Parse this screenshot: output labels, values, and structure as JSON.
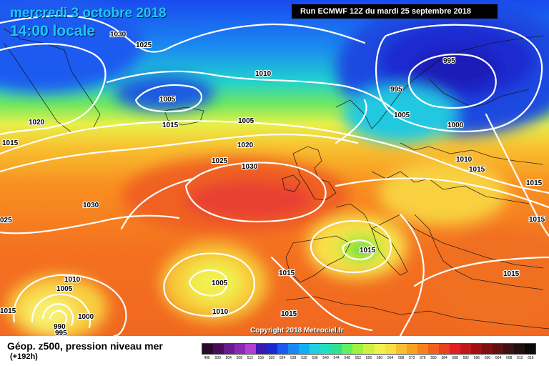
{
  "header": {
    "date_line": "mercredi 3 octobre 2018",
    "time_line": "14:00 locale",
    "run_info": "Run ECMWF 12Z du mardi 25 septembre 2018"
  },
  "copyright": "Copyright 2018 Meteociel.fr",
  "legend": {
    "title": "Géop. z500, pression niveau mer",
    "subtitle": "(+192h)",
    "scale_values": [
      "496",
      "500",
      "504",
      "508",
      "512",
      "516",
      "520",
      "524",
      "528",
      "532",
      "536",
      "540",
      "544",
      "548",
      "552",
      "556",
      "560",
      "564",
      "568",
      "572",
      "576",
      "580",
      "584",
      "588",
      "592",
      "596",
      "600",
      "604",
      "608",
      "612",
      "616"
    ],
    "scale_colors": [
      "#2a0a2e",
      "#4a0c5a",
      "#6a1a8a",
      "#8a2ab0",
      "#b040d0",
      "#3a1ab0",
      "#1a2ad0",
      "#1a5af0",
      "#1a8af0",
      "#10b0f0",
      "#20d0e0",
      "#20e0c0",
      "#30e090",
      "#60f060",
      "#a0f040",
      "#d0f040",
      "#f0f050",
      "#f8e040",
      "#f8c030",
      "#f8a020",
      "#f88020",
      "#f06020",
      "#e84020",
      "#e02020",
      "#c01818",
      "#a01010",
      "#801010",
      "#601010",
      "#401010",
      "#201010",
      "#0a0a0a"
    ]
  },
  "pressure_labels": [
    {
      "id": "1030-nw",
      "text": "1030"
    },
    {
      "id": "1025-nw",
      "text": "1025"
    },
    {
      "id": "1010-n",
      "text": "1010"
    },
    {
      "id": "1005-low-n",
      "text": "1005"
    },
    {
      "id": "1020-w",
      "text": "1020"
    },
    {
      "id": "1015-w",
      "text": "1015"
    },
    {
      "id": "1015-n",
      "text": "1015"
    },
    {
      "id": "1005-mid",
      "text": "1005"
    },
    {
      "id": "1020-mid",
      "text": "1020"
    },
    {
      "id": "1025-mid",
      "text": "1025"
    },
    {
      "id": "1030-mid",
      "text": "1030"
    },
    {
      "id": "1030-sw",
      "text": "1030"
    },
    {
      "id": "1025-edge",
      "text": "025"
    },
    {
      "id": "995-ne",
      "text": "995"
    },
    {
      "id": "995-ne2",
      "text": "995"
    },
    {
      "id": "1005-ne",
      "text": "1005"
    },
    {
      "id": "1000-ne",
      "text": "1000"
    },
    {
      "id": "1010-e",
      "text": "1010"
    },
    {
      "id": "1015-e",
      "text": "1015"
    },
    {
      "id": "1015-e2",
      "text": "1015"
    },
    {
      "id": "1015-e3",
      "text": "1015"
    },
    {
      "id": "1015-med",
      "text": "1015"
    },
    {
      "id": "1015-s",
      "text": "1015"
    },
    {
      "id": "1015-s2",
      "text": "1015"
    },
    {
      "id": "1015-se",
      "text": "1015"
    },
    {
      "id": "1005-s",
      "text": "1005"
    },
    {
      "id": "1010-s",
      "text": "1010"
    },
    {
      "id": "1010-sw",
      "text": "1010"
    },
    {
      "id": "1005-sw",
      "text": "1005"
    },
    {
      "id": "1000-sw",
      "text": "1000"
    },
    {
      "id": "990-sw",
      "text": "990"
    },
    {
      "id": "995-sw",
      "text": "995"
    },
    {
      "id": "1015-sw-edge",
      "text": "1015"
    }
  ]
}
